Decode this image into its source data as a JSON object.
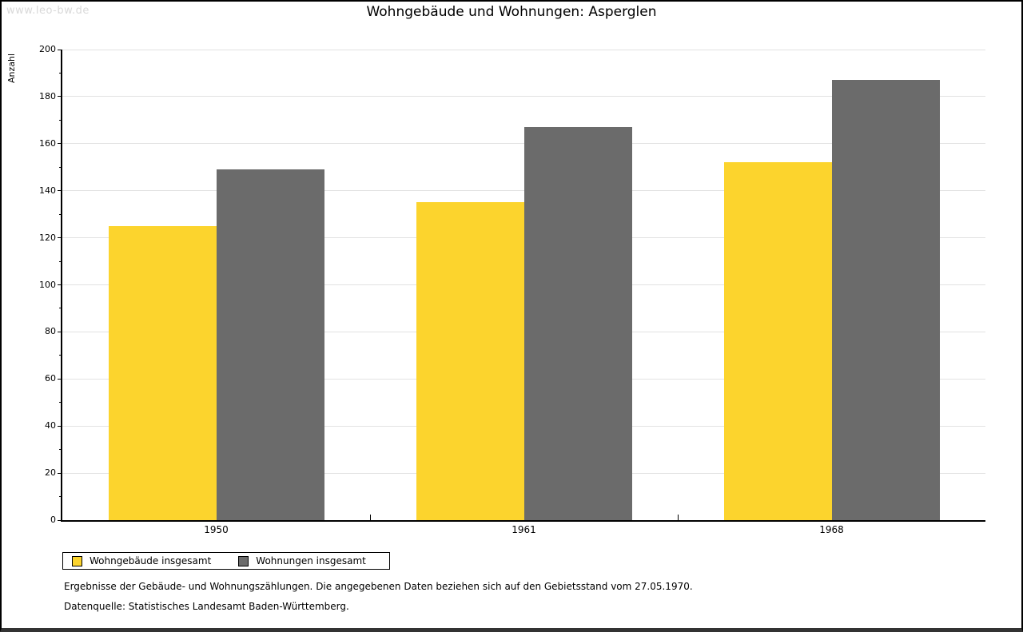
{
  "watermark": "www.leo-bw.de",
  "chart_data": {
    "type": "bar",
    "title": "Wohngebäude und Wohnungen: Asperglen",
    "ylabel": "Anzahl",
    "xlabel": "",
    "categories": [
      "1950",
      "1961",
      "1968"
    ],
    "series": [
      {
        "name": "Wohngebäude insgesamt",
        "key": "wohngebaeude",
        "color": "#fcd42d",
        "values": [
          125,
          135,
          152
        ]
      },
      {
        "name": "Wohnungen insgesamt",
        "key": "wohnungen",
        "color": "#6b6b6b",
        "values": [
          149,
          167,
          187
        ]
      }
    ],
    "ylim": [
      0,
      200
    ],
    "ytick_step": 20,
    "yminor_step": 10,
    "grid": true,
    "legend_position": "bottom-left"
  },
  "footnotes": [
    "Ergebnisse der Gebäude- und Wohnungszählungen. Die angegebenen Daten beziehen sich auf den Gebietsstand vom 27.05.1970.",
    "Datenquelle: Statistisches Landesamt Baden-Württemberg."
  ]
}
